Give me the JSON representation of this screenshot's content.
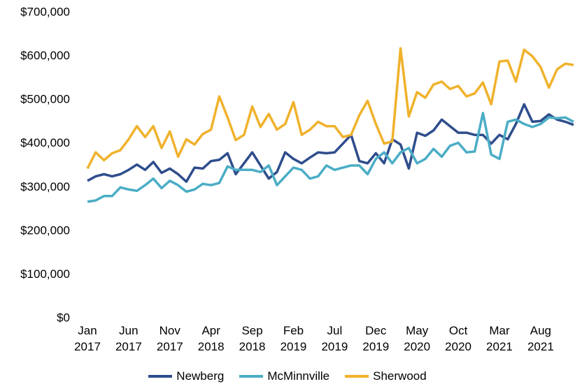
{
  "chart_data": {
    "type": "line",
    "categories": [
      "Jan 2017",
      null,
      null,
      null,
      null,
      "Jun 2017",
      null,
      null,
      null,
      null,
      "Nov 2017",
      null,
      null,
      null,
      null,
      "Apr 2018",
      null,
      null,
      null,
      null,
      "Sep 2018",
      null,
      null,
      null,
      null,
      "Feb 2019",
      null,
      null,
      null,
      null,
      "Jul 2019",
      null,
      null,
      null,
      null,
      "Dec 2019",
      null,
      null,
      null,
      null,
      "May 2020",
      null,
      null,
      null,
      null,
      "Oct 2020",
      null,
      null,
      null,
      null,
      "Mar 2021",
      null,
      null,
      null,
      null,
      "Aug 2021",
      null,
      null,
      null,
      null
    ],
    "series": [
      {
        "name": "Newberg",
        "color": "#2e4d8c",
        "values": [
          315000,
          325000,
          330000,
          325000,
          330000,
          340000,
          352000,
          340000,
          358000,
          333000,
          343000,
          330000,
          313000,
          345000,
          343000,
          360000,
          363000,
          378000,
          330000,
          355000,
          380000,
          350000,
          320000,
          335000,
          380000,
          365000,
          355000,
          368000,
          380000,
          378000,
          380000,
          400000,
          420000,
          360000,
          355000,
          378000,
          355000,
          410000,
          398000,
          343000,
          425000,
          418000,
          430000,
          455000,
          440000,
          425000,
          425000,
          420000,
          420000,
          400000,
          420000,
          410000,
          445000,
          490000,
          450000,
          452000,
          467000,
          455000,
          450000,
          443000
        ]
      },
      {
        "name": "McMinnville",
        "color": "#4badc6",
        "values": [
          267000,
          270000,
          280000,
          280000,
          300000,
          295000,
          292000,
          305000,
          320000,
          298000,
          315000,
          305000,
          290000,
          295000,
          308000,
          305000,
          310000,
          348000,
          340000,
          340000,
          340000,
          335000,
          350000,
          305000,
          325000,
          345000,
          340000,
          320000,
          325000,
          350000,
          340000,
          345000,
          350000,
          350000,
          330000,
          365000,
          380000,
          355000,
          380000,
          390000,
          355000,
          365000,
          388000,
          370000,
          395000,
          402000,
          380000,
          382000,
          470000,
          375000,
          365000,
          450000,
          455000,
          445000,
          438000,
          445000,
          460000,
          458000,
          460000,
          450000
        ]
      },
      {
        "name": "Sherwood",
        "color": "#f0b22c",
        "values": [
          343000,
          380000,
          362000,
          378000,
          385000,
          410000,
          440000,
          415000,
          440000,
          390000,
          428000,
          370000,
          410000,
          398000,
          422000,
          432000,
          508000,
          460000,
          408000,
          420000,
          485000,
          438000,
          468000,
          432000,
          445000,
          495000,
          420000,
          432000,
          450000,
          440000,
          440000,
          415000,
          420000,
          465000,
          498000,
          445000,
          400000,
          405000,
          618000,
          462000,
          518000,
          505000,
          535000,
          542000,
          525000,
          532000,
          508000,
          515000,
          540000,
          490000,
          588000,
          590000,
          542000,
          615000,
          600000,
          575000,
          528000,
          570000,
          583000,
          580000
        ]
      }
    ],
    "ylim": [
      0,
      700000
    ],
    "yticks": [
      {
        "value": 0,
        "label": "$0"
      },
      {
        "value": 100000,
        "label": "$100,000"
      },
      {
        "value": 200000,
        "label": "$200,000"
      },
      {
        "value": 300000,
        "label": "$300,000"
      },
      {
        "value": 400000,
        "label": "$400,000"
      },
      {
        "value": 500000,
        "label": "$500,000"
      },
      {
        "value": 600000,
        "label": "$600,000"
      },
      {
        "value": 700000,
        "label": "$700,000"
      }
    ],
    "grid": false,
    "legend": "bottom"
  }
}
